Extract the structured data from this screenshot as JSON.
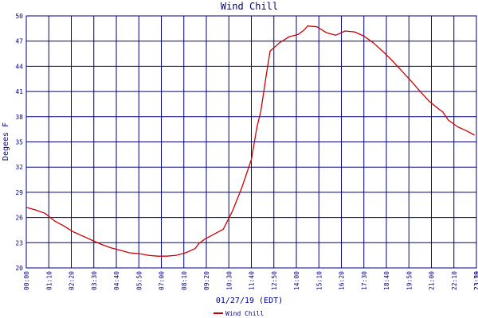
{
  "chart_data": {
    "type": "line",
    "title": "Wind Chill",
    "xlabel": "01/27/19 (EDT)",
    "ylabel": "Degees F",
    "ylim": [
      20,
      50
    ],
    "grid": true,
    "legend_position": "bottom-left",
    "colors": {
      "series": "#cc0000",
      "grid": "#000080",
      "text": "#000080",
      "background": "#ffffff"
    },
    "x_tick_labels": [
      "00:00",
      "01:10",
      "02:20",
      "03:30",
      "04:40",
      "05:50",
      "07:00",
      "08:10",
      "09:20",
      "10:30",
      "11:40",
      "12:50",
      "14:00",
      "15:10",
      "16:20",
      "17:30",
      "18:40",
      "19:50",
      "21:00",
      "22:10",
      "23:20",
      "23:59"
    ],
    "y_ticks": [
      20,
      23,
      26,
      29,
      32,
      35,
      38,
      41,
      44,
      47,
      50
    ],
    "series": [
      {
        "name": "Wind Chill",
        "x_unit": "hours",
        "x": [
          0,
          0.5,
          1.0,
          1.5,
          2.0,
          2.5,
          3.0,
          3.5,
          4.0,
          4.5,
          5.0,
          5.5,
          6.0,
          6.5,
          7.0,
          7.5,
          8.0,
          8.5,
          9.0,
          9.2,
          9.5,
          10.0,
          10.5,
          11.0,
          11.5,
          12.0,
          12.3,
          12.5,
          12.8,
          13.0,
          13.5,
          14.0,
          14.5,
          14.8,
          15.0,
          15.5,
          16.0,
          16.5,
          17.0,
          17.5,
          18.0,
          18.5,
          19.0,
          19.5,
          20.0,
          20.5,
          21.0,
          21.5,
          22.0,
          22.2,
          22.5,
          23.0,
          23.5,
          23.9
        ],
        "y": [
          27.2,
          26.9,
          26.5,
          25.6,
          25.0,
          24.3,
          23.8,
          23.3,
          22.8,
          22.4,
          22.1,
          21.8,
          21.7,
          21.5,
          21.4,
          21.4,
          21.5,
          21.8,
          22.3,
          22.9,
          23.4,
          24.0,
          24.6,
          26.8,
          29.6,
          32.9,
          36.8,
          38.6,
          43.0,
          45.8,
          46.8,
          47.5,
          47.8,
          48.3,
          48.8,
          48.7,
          48.0,
          47.7,
          48.2,
          48.1,
          47.6,
          46.8,
          45.8,
          44.7,
          43.5,
          42.3,
          41.0,
          39.8,
          38.9,
          38.6,
          37.6,
          36.8,
          36.3,
          35.8
        ]
      }
    ]
  }
}
